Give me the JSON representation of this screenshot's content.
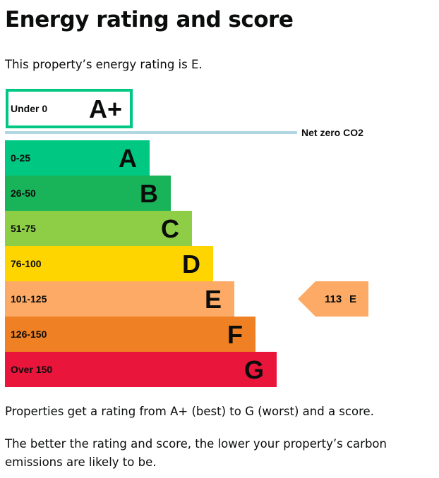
{
  "page": {
    "title": "Energy rating and score",
    "rating_text": "This property’s energy rating is E.",
    "explanation_1": "Properties get a rating from A+ (best) to G (worst) and a score.",
    "explanation_2": "The better the rating and score, the lower your property’s carbon emissions are likely to be."
  },
  "chart_data": {
    "type": "bar",
    "categories": [
      "A+",
      "A",
      "B",
      "C",
      "D",
      "E",
      "F",
      "G"
    ],
    "bands": [
      {
        "letter": "A+",
        "range": "Under 0",
        "color": "#00c781",
        "style": "outline"
      },
      {
        "letter": "A",
        "range": "0-25",
        "color": "#00c781"
      },
      {
        "letter": "B",
        "range": "26-50",
        "color": "#19b459"
      },
      {
        "letter": "C",
        "range": "51-75",
        "color": "#8dce46"
      },
      {
        "letter": "D",
        "range": "76-100",
        "color": "#ffd500"
      },
      {
        "letter": "E",
        "range": "101-125",
        "color": "#fcaa65"
      },
      {
        "letter": "F",
        "range": "126-150",
        "color": "#ef8023"
      },
      {
        "letter": "G",
        "range": "Over 150",
        "color": "#e9153b"
      }
    ],
    "net_zero": {
      "label": "Net zero CO2",
      "color": "#b1d7e3"
    },
    "current": {
      "score": 113,
      "rating": "E",
      "band_index": 5,
      "color": "#fcaa65"
    }
  }
}
